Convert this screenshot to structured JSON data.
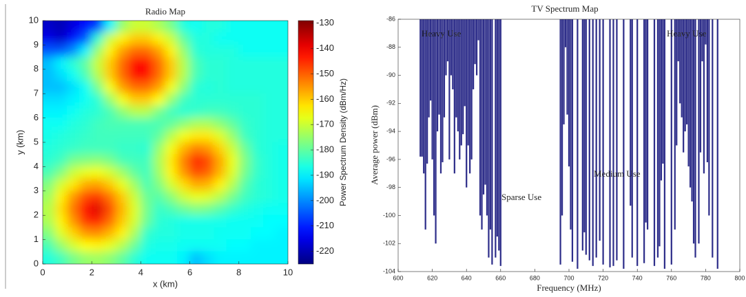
{
  "chart_data": [
    {
      "type": "heatmap",
      "title": "Radio Map",
      "xlabel": "x (km)",
      "ylabel": "y (km)",
      "x": [
        0.25,
        0.75,
        1.25,
        1.75,
        2.25,
        2.75,
        3.25,
        3.75,
        4.25,
        4.75,
        5.25,
        5.75,
        6.25,
        6.75,
        7.25,
        7.75,
        8.25,
        8.75,
        9.25,
        9.75
      ],
      "y": [
        9.75,
        9.25,
        8.75,
        8.25,
        7.75,
        7.25,
        6.75,
        6.25,
        5.75,
        5.25,
        4.75,
        4.25,
        3.75,
        3.25,
        2.75,
        2.25,
        1.75,
        1.25,
        0.75,
        0.25
      ],
      "z": [
        [
          -218,
          -220,
          -216,
          -212,
          -208,
          -190,
          -175,
          -170,
          -170,
          -173,
          -178,
          -186,
          -188,
          -186,
          -186,
          -188,
          -188,
          -188,
          -188,
          -188
        ],
        [
          -215,
          -218,
          -212,
          -205,
          -185,
          -170,
          -164,
          -160,
          -160,
          -164,
          -170,
          -180,
          -186,
          -186,
          -188,
          -188,
          -188,
          -188,
          -188,
          -188
        ],
        [
          -205,
          -205,
          -200,
          -190,
          -175,
          -164,
          -156,
          -151,
          -151,
          -156,
          -164,
          -175,
          -185,
          -186,
          -186,
          -186,
          -188,
          -188,
          -188,
          -188
        ],
        [
          -195,
          -190,
          -185,
          -180,
          -170,
          -160,
          -151,
          -142,
          -142,
          -151,
          -160,
          -172,
          -182,
          -185,
          -185,
          -186,
          -186,
          -186,
          -186,
          -186
        ],
        [
          -195,
          -192,
          -188,
          -182,
          -172,
          -160,
          -151,
          -142,
          -142,
          -151,
          -160,
          -172,
          -182,
          -185,
          -185,
          -186,
          -186,
          -186,
          -186,
          -186
        ],
        [
          -195,
          -195,
          -192,
          -188,
          -178,
          -166,
          -156,
          -151,
          -151,
          -156,
          -166,
          -176,
          -185,
          -186,
          -185,
          -186,
          -186,
          -186,
          -186,
          -186
        ],
        [
          -192,
          -192,
          -190,
          -188,
          -185,
          -175,
          -166,
          -160,
          -160,
          -165,
          -175,
          -183,
          -185,
          -185,
          -185,
          -185,
          -185,
          -185,
          -186,
          -186
        ],
        [
          -190,
          -190,
          -188,
          -186,
          -185,
          -182,
          -176,
          -172,
          -172,
          -178,
          -183,
          -185,
          -184,
          -183,
          -183,
          -184,
          -185,
          -185,
          -186,
          -186
        ],
        [
          -188,
          -188,
          -186,
          -185,
          -183,
          -182,
          -182,
          -182,
          -182,
          -182,
          -180,
          -176,
          -173,
          -173,
          -176,
          -180,
          -184,
          -185,
          -186,
          -186
        ],
        [
          -187,
          -186,
          -185,
          -184,
          -183,
          -183,
          -183,
          -183,
          -183,
          -180,
          -172,
          -166,
          -163,
          -163,
          -168,
          -175,
          -183,
          -185,
          -186,
          -186
        ],
        [
          -186,
          -185,
          -184,
          -183,
          -183,
          -183,
          -184,
          -184,
          -185,
          -175,
          -166,
          -158,
          -153,
          -155,
          -161,
          -170,
          -179,
          -185,
          -186,
          -187
        ],
        [
          -185,
          -183,
          -178,
          -177,
          -176,
          -178,
          -182,
          -183,
          -183,
          -173,
          -163,
          -153,
          -144,
          -148,
          -157,
          -167,
          -177,
          -184,
          -186,
          -187
        ],
        [
          -182,
          -177,
          -170,
          -167,
          -166,
          -169,
          -174,
          -180,
          -183,
          -174,
          -164,
          -155,
          -148,
          -150,
          -158,
          -168,
          -178,
          -184,
          -186,
          -187
        ],
        [
          -177,
          -169,
          -163,
          -157,
          -156,
          -160,
          -167,
          -174,
          -182,
          -177,
          -169,
          -162,
          -157,
          -158,
          -164,
          -172,
          -181,
          -185,
          -186,
          -187
        ],
        [
          -174,
          -164,
          -155,
          -148,
          -146,
          -152,
          -160,
          -170,
          -179,
          -181,
          -176,
          -170,
          -167,
          -168,
          -172,
          -178,
          -183,
          -185,
          -186,
          -187
        ],
        [
          -172,
          -162,
          -152,
          -142,
          -138,
          -148,
          -158,
          -168,
          -178,
          -184,
          -182,
          -179,
          -177,
          -178,
          -181,
          -184,
          -186,
          -187,
          -188,
          -188
        ],
        [
          -173,
          -164,
          -155,
          -146,
          -144,
          -151,
          -160,
          -169,
          -179,
          -185,
          -186,
          -187,
          -187,
          -187,
          -187,
          -188,
          -188,
          -188,
          -189,
          -189
        ],
        [
          -177,
          -168,
          -161,
          -155,
          -154,
          -158,
          -164,
          -173,
          -184,
          -186,
          -186,
          -187,
          -187,
          -187,
          -188,
          -188,
          -188,
          -189,
          -189,
          -190
        ],
        [
          -182,
          -175,
          -169,
          -165,
          -164,
          -167,
          -172,
          -179,
          -186,
          -187,
          -187,
          -188,
          -188,
          -188,
          -188,
          -189,
          -189,
          -190,
          -190,
          -190
        ],
        [
          -186,
          -183,
          -178,
          -175,
          -174,
          -176,
          -180,
          -185,
          -188,
          -188,
          -188,
          -190,
          -195,
          -192,
          -190,
          -190,
          -190,
          -190,
          -190,
          -190
        ]
      ],
      "xlim": [
        0,
        10
      ],
      "ylim": [
        0,
        10
      ],
      "xticks": [
        0,
        2,
        4,
        6,
        8,
        10
      ],
      "yticks": [
        0,
        1,
        2,
        3,
        4,
        5,
        6,
        7,
        8,
        9,
        10
      ],
      "colorbar": {
        "label": "Power Spectrum Density (dBm/Hz)",
        "colormap": "jet",
        "lim": [
          -225,
          -129
        ],
        "ticks": [
          -130,
          -140,
          -150,
          -160,
          -170,
          -180,
          -190,
          -200,
          -210,
          -220
        ]
      }
    },
    {
      "type": "bar",
      "title": "TV Spectrum Map",
      "xlabel": "Frequency (MHz)",
      "ylabel": "Average power (dBm)",
      "color": "#2e2e8a",
      "x": [
        613,
        614,
        615,
        616,
        617,
        618,
        619,
        620,
        621,
        622,
        623,
        624,
        625,
        626,
        627,
        628,
        629,
        630,
        631,
        632,
        633,
        634,
        635,
        636,
        637,
        638,
        639,
        640,
        641,
        642,
        643,
        644,
        645,
        646,
        647,
        648,
        649,
        650,
        651,
        652,
        653,
        654,
        655,
        657,
        658,
        659,
        660,
        695,
        696,
        697,
        698,
        699,
        700,
        701,
        702,
        705,
        708,
        709,
        710,
        712,
        714,
        716,
        718,
        720,
        724,
        726,
        728,
        732,
        736,
        737,
        740,
        744,
        745,
        746,
        750,
        752,
        753,
        754,
        755,
        756,
        760,
        762,
        763,
        764,
        765,
        766,
        767,
        768,
        769,
        770,
        771,
        772,
        773,
        774,
        776,
        777,
        778,
        779,
        780,
        781,
        782,
        784,
        787
      ],
      "values": [
        -95.8,
        -95.8,
        -97,
        -101,
        -96.3,
        -93,
        -91.8,
        -96,
        -100,
        -102,
        -94,
        -92.8,
        -97,
        -96.2,
        -93,
        -90,
        -89,
        -96,
        -90,
        -91,
        -97,
        -93,
        -94,
        -96,
        -95,
        -94.2,
        -92.2,
        -98,
        -95,
        -97,
        -96,
        -91,
        -89.2,
        -90,
        -87.5,
        -100,
        -101,
        -98.5,
        -97.8,
        -100,
        -103,
        -101,
        -103.5,
        -103,
        -101.5,
        -102.5,
        -103.6,
        -103.5,
        -100,
        -93.5,
        -88,
        -92.8,
        -96.5,
        -101,
        -103.3,
        -103.8,
        -102.5,
        -101.2,
        -102.8,
        -103.2,
        -103.6,
        -103,
        -101.8,
        -103.5,
        -103.7,
        -103.6,
        -103.2,
        -103.8,
        -99.3,
        -103,
        -103.6,
        -103.4,
        -100.5,
        -101,
        -103.6,
        -103,
        -102.2,
        -97.5,
        -96.3,
        -103.8,
        -103.5,
        -101,
        -95,
        -89,
        -92,
        -93,
        -95.5,
        -94,
        -93.5,
        -96.5,
        -98,
        -99,
        -102,
        -103,
        -102,
        -95.5,
        -89,
        -97,
        -87.8,
        -96.2,
        -100,
        -103,
        -103.8
      ],
      "xlim": [
        600,
        800
      ],
      "ylim": [
        -104,
        -86
      ],
      "xticks": [
        600,
        620,
        640,
        660,
        680,
        700,
        720,
        740,
        760,
        780,
        800
      ],
      "yticks": [
        -104,
        -102,
        -100,
        -98,
        -96,
        -94,
        -92,
        -90,
        -88,
        -86
      ],
      "annotations": [
        "Heavy Use",
        "Sparse Use",
        "Medium Use",
        "Heavy Use"
      ]
    }
  ]
}
